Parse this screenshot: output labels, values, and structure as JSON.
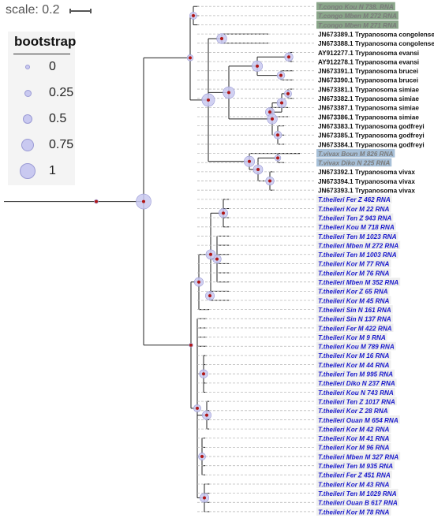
{
  "scale": {
    "label": "scale: 0.2"
  },
  "legend": {
    "title": "bootstrap",
    "items": [
      {
        "label": "0",
        "value": 0
      },
      {
        "label": "0.25",
        "value": 0.25
      },
      {
        "label": "0.5",
        "value": 0.5
      },
      {
        "label": "0.75",
        "value": 0.75
      },
      {
        "label": "1",
        "value": 1
      }
    ]
  },
  "colors": {
    "branch": "#222222",
    "node_marker": "#b01515",
    "bootstrap_fill": "#c9c9f0",
    "leaf_dash": "#bbbbbb",
    "label_black": "#111111",
    "label_blue": "#1a1acc",
    "label_grey": "#7a7a7a",
    "highlight_green": "#8aa68a",
    "highlight_blue": "#a7c0d8"
  },
  "leaves": [
    {
      "label": "T.congo Kou N 738. RNA",
      "style": "green"
    },
    {
      "label": "T.congo Mben M 272 RNA",
      "style": "green"
    },
    {
      "label": "T.congo Mben M 271 RNA",
      "style": "green"
    },
    {
      "label": "JN673389.1 Trypanosoma congolense",
      "style": "black"
    },
    {
      "label": "JN673388.1 Trypanosoma congolense",
      "style": "black"
    },
    {
      "label": "AY912277.1 Trypanosoma evansi",
      "style": "black"
    },
    {
      "label": "AY912278.1 Trypanosoma evansi",
      "style": "black"
    },
    {
      "label": "JN673391.1 Trypanosoma brucei",
      "style": "black"
    },
    {
      "label": "JN673390.1 Trypanosoma brucei",
      "style": "black"
    },
    {
      "label": "JN673381.1 Trypanosoma simiae",
      "style": "black"
    },
    {
      "label": "JN673382.1 Trypanosoma simiae",
      "style": "black"
    },
    {
      "label": "JN673387.1 Trypanosoma simiae",
      "style": "black"
    },
    {
      "label": "JN673386.1 Trypanosoma simiae",
      "style": "black"
    },
    {
      "label": "JN673383.1 Trypanosoma godfreyi",
      "style": "black"
    },
    {
      "label": "JN673385.1 Trypanosoma godfreyi",
      "style": "black"
    },
    {
      "label": "JN673384.1 Trypanosoma godfreyi",
      "style": "black"
    },
    {
      "label": "T.vivax Boun M 826 RNA",
      "style": "vivax"
    },
    {
      "label": "T.vivax Diko N 225 RNA",
      "style": "vivax"
    },
    {
      "label": "JN673392.1 Trypanosoma vivax",
      "style": "black"
    },
    {
      "label": "JN673394.1 Trypanosoma vivax",
      "style": "black"
    },
    {
      "label": "JN673393.1 Trypanosoma vivax",
      "style": "black"
    },
    {
      "label": "T.theileri Fer Z 462 RNA",
      "style": "blue"
    },
    {
      "label": "T.theileri Kor M 22 RNA",
      "style": "blue"
    },
    {
      "label": "T.theileri Ten Z 943 RNA",
      "style": "blue"
    },
    {
      "label": "T.theileri Kou M 718 RNA",
      "style": "blue"
    },
    {
      "label": "T.theileri Ten M 1023 RNA",
      "style": "blue"
    },
    {
      "label": "T.theileri Mben M 272 RNA",
      "style": "blue"
    },
    {
      "label": "T.theileri Ten M 1003 RNA",
      "style": "blue"
    },
    {
      "label": "T.theileri Kor M 77 RNA",
      "style": "blue"
    },
    {
      "label": "T.theileri Kor M 76 RNA",
      "style": "blue"
    },
    {
      "label": "T.theileri Mben M 352 RNA",
      "style": "blue"
    },
    {
      "label": "T.theileri Kor Z 65 RNA",
      "style": "blue"
    },
    {
      "label": "T.theileri Kor M 45 RNA",
      "style": "blue"
    },
    {
      "label": "T.theileri Sin N 161 RNA",
      "style": "blue"
    },
    {
      "label": "T.theileri Sin N 137 RNA",
      "style": "blue"
    },
    {
      "label": "T.theileri Fer M 422 RNA",
      "style": "blue"
    },
    {
      "label": "T.theileri Kor M 9 RNA",
      "style": "blue"
    },
    {
      "label": "T.theileri Kou M 789 RNA",
      "style": "blue"
    },
    {
      "label": "T.theileri Kor M 16 RNA",
      "style": "blue"
    },
    {
      "label": "T.theileri Kor M 44 RNA",
      "style": "blue"
    },
    {
      "label": "T.theileri Ten M 995 RNA",
      "style": "blue"
    },
    {
      "label": "T.theileri Diko N 237 RNA",
      "style": "blue"
    },
    {
      "label": "T.theileri Kou N 743 RNA",
      "style": "blue"
    },
    {
      "label": "T.theileri Ten Z 1017 RNA",
      "style": "blue"
    },
    {
      "label": "T.theileri Kor Z 28 RNA",
      "style": "blue"
    },
    {
      "label": "T.theileri Ouan M 654 RNA",
      "style": "blue"
    },
    {
      "label": "T.theileri Kor M 42 RNA",
      "style": "blue"
    },
    {
      "label": "T.theileri Kor M 41 RNA",
      "style": "blue"
    },
    {
      "label": "T.theileri Kor M 96 RNA",
      "style": "blue"
    },
    {
      "label": "T.theileri Mben M 327 RNA",
      "style": "blue"
    },
    {
      "label": "T.theileri Ten M 935 RNA",
      "style": "blue"
    },
    {
      "label": "T.theileri Fer Z 451 RNA",
      "style": "blue"
    },
    {
      "label": "T.theileri Kor M 43 RNA",
      "style": "blue"
    },
    {
      "label": "T.theileri Ten M 1029 RNA",
      "style": "blue"
    },
    {
      "label": "T.theileri Ouan B 617 RNA",
      "style": "blue"
    },
    {
      "label": "T.theileri Kor M 78 RNA",
      "style": "blue"
    }
  ]
}
